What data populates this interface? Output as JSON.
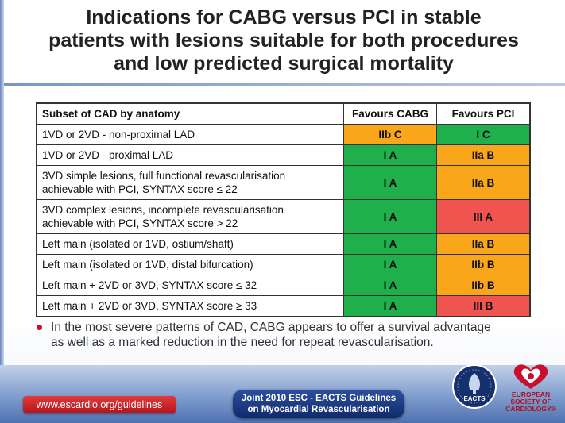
{
  "title": {
    "line1": "Indications for CABG versus PCI in stable",
    "line2": "patients with lesions suitable for both procedures",
    "line3": "and low predicted surgical mortality"
  },
  "table": {
    "headers": [
      "Subset of CAD by anatomy",
      "Favours CABG",
      "Favours PCI"
    ],
    "rows": [
      {
        "subset_line1": "1VD or 2VD - non-proximal LAD",
        "subset_line2": "",
        "cabg": "IIb C",
        "pci": "I C",
        "cabg_color": "#f9a61a",
        "pci_color": "#1fb04b"
      },
      {
        "subset_line1": "1VD or 2VD - proximal LAD",
        "subset_line2": "",
        "cabg": "I A",
        "pci": "IIa B",
        "cabg_color": "#1fb04b",
        "pci_color": "#f9a61a"
      },
      {
        "subset_line1": "3VD simple lesions, full functional revascularisation",
        "subset_line2": "achievable with PCI, SYNTAX score ≤ 22",
        "cabg": "I A",
        "pci": "IIa B",
        "cabg_color": "#1fb04b",
        "pci_color": "#f9a61a"
      },
      {
        "subset_line1": "3VD complex lesions, incomplete revascularisation",
        "subset_line2": "achievable with PCI, SYNTAX score > 22",
        "cabg": "I A",
        "pci": "III A",
        "cabg_color": "#1fb04b",
        "pci_color": "#f0544f"
      },
      {
        "subset_line1": "Left main (isolated or 1VD, ostium/shaft)",
        "subset_line2": "",
        "cabg": "I A",
        "pci": "IIa B",
        "cabg_color": "#1fb04b",
        "pci_color": "#f9a61a"
      },
      {
        "subset_line1": "Left main (isolated or 1VD, distal bifurcation)",
        "subset_line2": "",
        "cabg": "I A",
        "pci": "IIb B",
        "cabg_color": "#1fb04b",
        "pci_color": "#f9a61a"
      },
      {
        "subset_line1": "Left main + 2VD or 3VD, SYNTAX score ≤ 32",
        "subset_line2": "",
        "cabg": "I A",
        "pci": "IIb B",
        "cabg_color": "#1fb04b",
        "pci_color": "#f9a61a"
      },
      {
        "subset_line1": "Left main + 2VD or 3VD, SYNTAX score ≥ 33",
        "subset_line2": "",
        "cabg": "I A",
        "pci": "III B",
        "cabg_color": "#1fb04b",
        "pci_color": "#f0544f"
      }
    ]
  },
  "bullet": {
    "line1": "In the most severe patterns of CAD, CABG appears to offer a survival advantage",
    "line2": "as well as a marked reduction in the need for repeat revascularisation."
  },
  "footer": {
    "url": "www.escardio.org/guidelines",
    "guidelines_line1": "Joint 2010 ESC - EACTS Guidelines",
    "guidelines_line2": "on Myocardial Revascularisation",
    "eacts_label": "EACTS",
    "esc_line1": "EUROPEAN",
    "esc_line2": "SOCIETY OF",
    "esc_line3": "CARDIOLOGY®"
  },
  "colors": {
    "favour_strong": "#1fb04b",
    "favour_weak": "#f9a61a",
    "not_recommended": "#f0544f",
    "brand_red": "#c8102e",
    "brand_blue": "#0f2a6b"
  }
}
